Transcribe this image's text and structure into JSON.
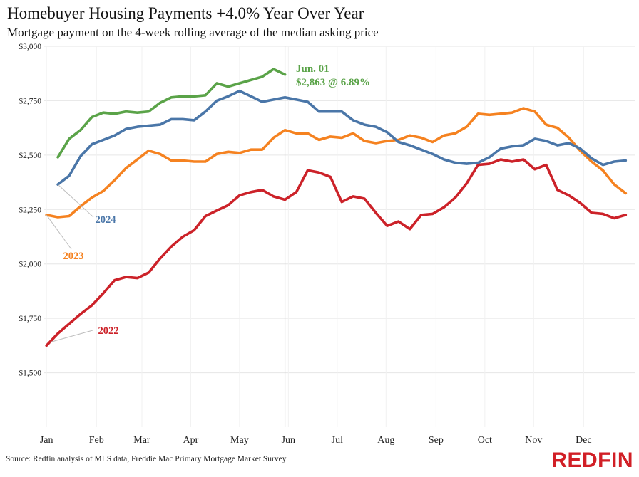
{
  "header": {
    "title": "Homebuyer Housing Payments +4.0% Year Over Year",
    "subtitle": "Mortgage payment on the 4-week rolling average of the median asking price"
  },
  "footer": {
    "source": "Source: Redfin analysis of MLS data, Freddie Mac Primary Mortgage Market Survey",
    "logo": "REDFIN",
    "logo_color": "#d11f26"
  },
  "chart_data": {
    "type": "line",
    "title": "Homebuyer Housing Payments +4.0% Year Over Year",
    "subtitle": "Mortgage payment on the 4-week rolling average of the median asking price",
    "xlabel": "",
    "ylabel": "",
    "x_tick_labels": [
      "Jan",
      "Feb",
      "Mar",
      "Apr",
      "May",
      "Jun",
      "Jul",
      "Aug",
      "Sep",
      "Oct",
      "Nov",
      "Dec"
    ],
    "y_tick_labels": [
      "$1,500",
      "$1,750",
      "$2,000",
      "$2,250",
      "$2,500",
      "$2,750",
      "$3,000"
    ],
    "y_ticks": [
      1500,
      1750,
      2000,
      2250,
      2500,
      2750,
      3000
    ],
    "ylim": [
      1250,
      3000
    ],
    "xlim": [
      0.8,
      52.8
    ],
    "x_unit": "week of year",
    "grid": "horizontal and vertical",
    "marker_line_label": "Jun. 01",
    "annotation": {
      "line1": "Jun. 01",
      "line2": "$2,863 @ 6.89%",
      "color": "#5aa348"
    },
    "series": [
      {
        "name": "2022",
        "color": "#cc2229",
        "x": [
          1,
          2,
          3,
          4,
          5,
          6,
          7,
          8,
          9,
          10,
          11,
          12,
          13,
          14,
          15,
          16,
          17,
          18,
          19,
          20,
          21,
          22,
          23,
          24,
          25,
          26,
          27,
          28,
          29,
          30,
          31,
          32,
          33,
          34,
          35,
          36,
          37,
          38,
          39,
          40,
          41,
          42,
          43,
          44,
          45,
          46,
          47,
          48,
          49,
          50,
          51,
          52
        ],
        "values": [
          1625,
          1680,
          1725,
          1770,
          1810,
          1865,
          1925,
          1940,
          1935,
          1960,
          2025,
          2080,
          2125,
          2155,
          2220,
          2245,
          2270,
          2315,
          2330,
          2340,
          2310,
          2295,
          2330,
          2430,
          2420,
          2400,
          2285,
          2310,
          2300,
          2235,
          2175,
          2195,
          2160,
          2225,
          2230,
          2260,
          2305,
          2370,
          2455,
          2460,
          2480,
          2470,
          2480,
          2435,
          2455,
          2340,
          2315,
          2280,
          2235,
          2230,
          2210,
          2225
        ]
      },
      {
        "name": "2023",
        "color": "#f58220",
        "x": [
          1,
          2,
          3,
          4,
          5,
          6,
          7,
          8,
          9,
          10,
          11,
          12,
          13,
          14,
          15,
          16,
          17,
          18,
          19,
          20,
          21,
          22,
          23,
          24,
          25,
          26,
          27,
          28,
          29,
          30,
          31,
          32,
          33,
          34,
          35,
          36,
          37,
          38,
          39,
          40,
          41,
          42,
          43,
          44,
          45,
          46,
          47,
          48,
          49,
          50,
          51,
          52
        ],
        "values": [
          2225,
          2215,
          2220,
          2265,
          2305,
          2335,
          2385,
          2440,
          2480,
          2520,
          2505,
          2475,
          2475,
          2470,
          2470,
          2505,
          2515,
          2510,
          2525,
          2525,
          2580,
          2615,
          2600,
          2600,
          2570,
          2585,
          2580,
          2600,
          2565,
          2555,
          2565,
          2570,
          2590,
          2580,
          2560,
          2590,
          2600,
          2630,
          2690,
          2685,
          2690,
          2695,
          2715,
          2700,
          2640,
          2625,
          2580,
          2520,
          2470,
          2430,
          2365,
          2325
        ]
      },
      {
        "name": "2024",
        "color": "#4a76a8",
        "x": [
          2,
          3,
          4,
          5,
          6,
          7,
          8,
          9,
          10,
          11,
          12,
          13,
          14,
          15,
          16,
          17,
          18,
          19,
          20,
          21,
          22,
          23,
          24,
          25,
          26,
          27,
          28,
          29,
          30,
          31,
          32,
          33,
          34,
          35,
          36,
          37,
          38,
          39,
          40,
          41,
          42,
          43,
          44,
          45,
          46,
          47,
          48,
          49,
          50,
          51,
          52
        ],
        "values": [
          2365,
          2405,
          2495,
          2550,
          2570,
          2590,
          2620,
          2630,
          2635,
          2640,
          2665,
          2665,
          2660,
          2700,
          2750,
          2770,
          2795,
          2770,
          2745,
          2755,
          2765,
          2755,
          2745,
          2700,
          2700,
          2700,
          2660,
          2640,
          2630,
          2605,
          2560,
          2545,
          2525,
          2505,
          2480,
          2465,
          2460,
          2465,
          2490,
          2530,
          2540,
          2545,
          2575,
          2565,
          2545,
          2555,
          2530,
          2485,
          2455,
          2470,
          2475
        ]
      },
      {
        "name": "",
        "color": "#5aa348",
        "x": [
          2,
          3,
          4,
          5,
          6,
          7,
          8,
          9,
          10,
          11,
          12,
          13,
          14,
          15,
          16,
          17,
          18,
          19,
          20,
          21,
          22
        ],
        "values": [
          2490,
          2575,
          2615,
          2675,
          2695,
          2690,
          2700,
          2695,
          2700,
          2740,
          2765,
          2770,
          2770,
          2775,
          2830,
          2815,
          2830,
          2845,
          2860,
          2895,
          2870
        ]
      }
    ]
  }
}
